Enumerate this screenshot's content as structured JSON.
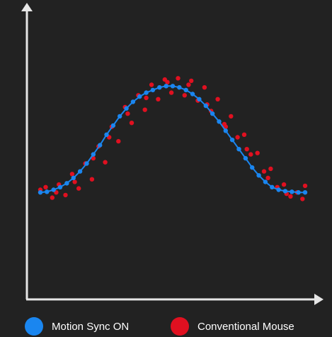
{
  "chart_data": {
    "type": "scatter",
    "title": "",
    "xlabel": "",
    "ylabel": "",
    "xlim": [
      0,
      1
    ],
    "ylim": [
      0,
      1
    ],
    "grid": false,
    "legend_position": "bottom",
    "series": [
      {
        "name": "Motion Sync ON",
        "color": "#1a86f0",
        "line": true,
        "x": [
          0.0,
          0.025,
          0.05,
          0.075,
          0.1,
          0.125,
          0.15,
          0.175,
          0.2,
          0.225,
          0.25,
          0.275,
          0.3,
          0.325,
          0.35,
          0.375,
          0.4,
          0.425,
          0.45,
          0.475,
          0.5,
          0.525,
          0.55,
          0.575,
          0.6,
          0.625,
          0.65,
          0.675,
          0.7,
          0.725,
          0.75,
          0.775,
          0.8,
          0.825,
          0.85,
          0.875,
          0.9,
          0.925,
          0.95,
          0.975,
          1.0
        ],
        "y": [
          0.08,
          0.085,
          0.1,
          0.12,
          0.15,
          0.19,
          0.24,
          0.3,
          0.37,
          0.44,
          0.52,
          0.59,
          0.66,
          0.72,
          0.77,
          0.81,
          0.84,
          0.86,
          0.88,
          0.89,
          0.89,
          0.88,
          0.86,
          0.83,
          0.79,
          0.74,
          0.68,
          0.62,
          0.55,
          0.48,
          0.41,
          0.34,
          0.27,
          0.21,
          0.16,
          0.12,
          0.1,
          0.09,
          0.085,
          0.08,
          0.08
        ]
      },
      {
        "name": "Conventional Mouse",
        "color": "#e01020",
        "line": false,
        "x": [
          0.02,
          0.045,
          0.07,
          0.095,
          0.12,
          0.145,
          0.17,
          0.195,
          0.22,
          0.245,
          0.27,
          0.295,
          0.32,
          0.345,
          0.37,
          0.395,
          0.42,
          0.445,
          0.47,
          0.495,
          0.52,
          0.545,
          0.57,
          0.595,
          0.62,
          0.645,
          0.67,
          0.695,
          0.72,
          0.745,
          0.77,
          0.795,
          0.82,
          0.845,
          0.87,
          0.895,
          0.92,
          0.945,
          0.97,
          0.99,
          0.0,
          0.06,
          0.13,
          0.2,
          0.26,
          0.33,
          0.4,
          0.48,
          0.56,
          0.63,
          0.7,
          0.78,
          0.86,
          0.93,
          1.0
        ],
        "y": [
          0.12,
          0.04,
          0.14,
          0.06,
          0.22,
          0.11,
          0.3,
          0.18,
          0.43,
          0.31,
          0.58,
          0.47,
          0.73,
          0.61,
          0.82,
          0.71,
          0.9,
          0.79,
          0.94,
          0.84,
          0.95,
          0.82,
          0.93,
          0.78,
          0.88,
          0.7,
          0.79,
          0.6,
          0.66,
          0.5,
          0.52,
          0.37,
          0.38,
          0.24,
          0.26,
          0.12,
          0.14,
          0.05,
          0.08,
          0.03,
          0.1,
          0.08,
          0.16,
          0.34,
          0.5,
          0.68,
          0.8,
          0.92,
          0.9,
          0.75,
          0.58,
          0.41,
          0.19,
          0.07,
          0.13
        ]
      }
    ]
  },
  "legend": {
    "items": [
      {
        "label": "Motion Sync ON",
        "color": "#1a86f0"
      },
      {
        "label": "Conventional Mouse",
        "color": "#e01020"
      }
    ]
  },
  "colors": {
    "background": "#222222",
    "axis": "#e6e6e6"
  }
}
